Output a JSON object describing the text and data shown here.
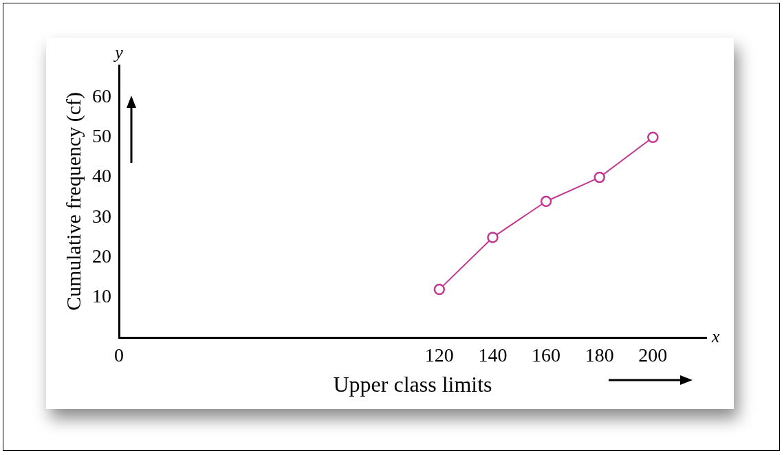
{
  "chart_data": {
    "type": "line",
    "xlabel": "Upper class limits",
    "ylabel": "Cumulative frequency (cf)",
    "x": [
      120,
      140,
      160,
      180,
      200
    ],
    "series": [
      {
        "color": "#c2378f",
        "values": [
          12,
          25,
          34,
          40,
          50
        ]
      }
    ],
    "xlim": [
      0,
      220
    ],
    "xticks": [
      0,
      120,
      140,
      160,
      180,
      200
    ],
    "ylim": [
      0,
      68
    ],
    "yticks": [
      10,
      20,
      30,
      40,
      50,
      60
    ],
    "grid": false,
    "legend": false,
    "marker": "circle",
    "line_style": "solid",
    "annotations": [
      "x",
      "y"
    ]
  }
}
